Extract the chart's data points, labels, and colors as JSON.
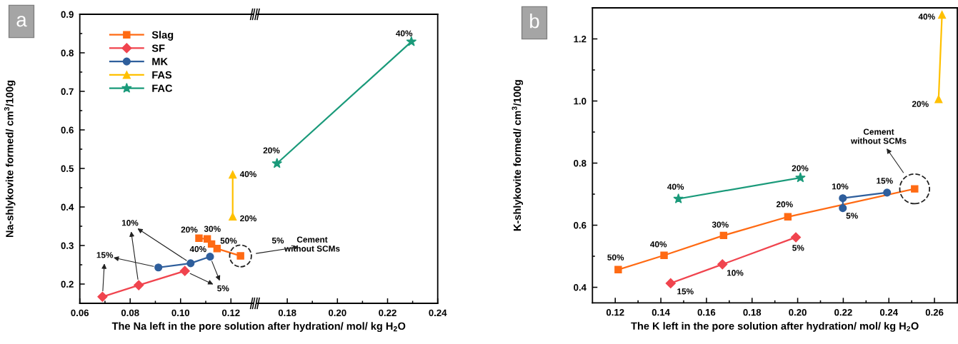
{
  "chart_data": [
    {
      "type": "line",
      "title": "a",
      "xlabel": "The Na left in the pore solution after hydration/ mol/ kg H$_{2}$O",
      "ylabel": "Na-shlykovite formed/ cm$^{3}$/100g",
      "xlim": [
        0.06,
        0.129
      ],
      "xticks": [
        0.06,
        {
          "value": 0.07,
          "label": null
        },
        0.08,
        {
          "value": 0.09,
          "label": null
        },
        {
          "value": 0.1,
          "label": "0.10"
        },
        {
          "value": 0.11,
          "label": null
        },
        0.12
      ],
      "ylim": [
        0.15,
        0.9
      ],
      "yticks": [
        0.2,
        {
          "value": 0.25,
          "label": null
        },
        0.3,
        {
          "value": 0.35,
          "label": null
        },
        0.4,
        {
          "value": 0.45,
          "label": null
        },
        0.5,
        {
          "value": 0.55,
          "label": null
        },
        0.6,
        {
          "value": 0.65,
          "label": null
        },
        0.7,
        {
          "value": 0.75,
          "label": null
        },
        0.8,
        {
          "value": 0.85,
          "label": null
        },
        0.9
      ],
      "legend": "top left",
      "series": [
        {
          "name": "Slag",
          "color": "#ff6a13",
          "marker": "square",
          "x": [
            0.1073,
            0.1106,
            0.1123,
            0.1145,
            0.1238
          ],
          "values": [
            0.319,
            0.317,
            0.304,
            0.292,
            0.273
          ]
        },
        {
          "name": "SF",
          "color": "#f0444e",
          "marker": "diamond",
          "x": [
            0.069,
            0.0834,
            0.1017
          ],
          "values": [
            0.167,
            0.197,
            0.234
          ]
        },
        {
          "name": "MK",
          "color": "#2e5e9c",
          "marker": "circle",
          "x": [
            0.0912,
            0.104,
            0.1117
          ],
          "values": [
            0.243,
            0.254,
            0.271
          ]
        },
        {
          "name": "FAS",
          "color": "#ffc000",
          "marker": "triangle",
          "x": [
            0.1207,
            0.1207
          ],
          "values": [
            0.375,
            0.484
          ]
        }
      ],
      "annotations": [
        {
          "text": "20%",
          "x": 0.1073,
          "y": 0.319
        },
        {
          "text": "30%",
          "x": 0.1106,
          "y": 0.317
        },
        {
          "text": "40%",
          "x": 0.1123,
          "y": 0.304
        },
        {
          "text": "50%",
          "x": 0.1145,
          "y": 0.292
        },
        "5%",
        "Cement\nwithout SCMs",
        {
          "text": "10%",
          "x": 0.0834,
          "y": 0.197
        },
        {
          "text": "15%",
          "x": 0.069,
          "y": 0.167
        },
        {
          "text": "5%",
          "x": 0.1017,
          "y": 0.234
        },
        {
          "text": "40%",
          "x": 0.1207,
          "y": 0.484
        },
        {
          "text": "20%",
          "x": 0.1207,
          "y": 0.375
        }
      ]
    },
    {
      "type": "line",
      "tick_labels": "x",
      "xlim": [
        0.168,
        0.24
      ],
      "xticks": [
        0.18,
        {
          "value": 0.19,
          "label": null
        },
        {
          "value": 0.2,
          "label": "0.20"
        },
        {
          "value": 0.21,
          "label": null
        },
        0.22,
        {
          "value": 0.23,
          "label": null
        },
        0.24
      ],
      "ylim": [
        0.15,
        0.9
      ],
      "series": [
        {
          "name": "FAC",
          "color": "#1a9a7a",
          "marker": "star",
          "x": [
            0.1759,
            0.2295
          ],
          "values": [
            0.513,
            0.829
          ]
        }
      ],
      "annotations": [
        {
          "text": "20%",
          "x": 0.1759,
          "y": 0.513
        },
        {
          "text": "40%",
          "x": 0.2295,
          "y": 0.829
        }
      ]
    },
    {
      "type": "line",
      "title": "b",
      "xlabel": "The K left in the pore solution after hydration/ mol/ kg H$_{2}$O",
      "ylabel": "K-shlykovite formed/ cm$^{3}$/100g",
      "xlim": [
        0.11,
        0.27
      ],
      "xticks": [
        0.12,
        {
          "value": 0.13,
          "label": null
        },
        0.14,
        {
          "value": 0.15,
          "label": null
        },
        0.16,
        {
          "value": 0.17,
          "label": null
        },
        0.18,
        {
          "value": 0.19,
          "label": null
        },
        {
          "value": 0.2,
          "label": "0.20"
        },
        {
          "value": 0.21,
          "label": null
        },
        0.22,
        {
          "value": 0.23,
          "label": null
        },
        0.24,
        {
          "value": 0.25,
          "label": null
        },
        0.26
      ],
      "ylim": [
        0.35,
        1.3
      ],
      "yticks": [
        0.4,
        {
          "value": 0.5,
          "label": null
        },
        0.6,
        {
          "value": 0.7,
          "label": null
        },
        0.8,
        {
          "value": 0.9,
          "label": null
        },
        {
          "value": 1.0,
          "label": "1.0"
        },
        {
          "value": 1.1,
          "label": null
        },
        1.2
      ],
      "series": [
        {
          "color": "#ff6a13",
          "marker": "square",
          "x": [
            0.1213,
            0.1414,
            0.1675,
            0.1957,
            0.2513
          ],
          "values": [
            0.457,
            0.503,
            0.567,
            0.627,
            0.717
          ]
        },
        {
          "color": "#f0444e",
          "marker": "diamond",
          "x": [
            0.1443,
            0.167,
            0.1992
          ],
          "values": [
            0.413,
            0.474,
            0.561
          ]
        },
        {
          "color": "#2e5e9c",
          "marker": "circle",
          "x": [
            0.2198,
            0.2198,
            0.2392
          ],
          "values": [
            0.655,
            0.687,
            0.705
          ]
        },
        {
          "color": "#ffc000",
          "marker": "triangle",
          "x": [
            0.2618,
            0.2633
          ],
          "values": [
            1.006,
            1.278
          ]
        },
        {
          "color": "#1a9a7a",
          "marker": "star",
          "x": [
            0.1477,
            0.2012
          ],
          "values": [
            0.685,
            0.753
          ]
        }
      ],
      "annotations": [
        {
          "text": "50%",
          "x": 0.1213,
          "y": 0.457
        },
        {
          "text": "40%",
          "x": 0.1414,
          "y": 0.503
        },
        {
          "text": "30%",
          "x": 0.1675,
          "y": 0.567
        },
        {
          "text": "20%",
          "x": 0.1957,
          "y": 0.627
        },
        "Cement\nwithout SCMs",
        {
          "text": "15%",
          "x": 0.1443,
          "y": 0.413
        },
        {
          "text": "10%",
          "x": 0.167,
          "y": 0.474
        },
        {
          "text": "5%",
          "x": 0.1992,
          "y": 0.561
        },
        {
          "text": "5%",
          "x": 0.2198,
          "y": 0.655
        },
        {
          "text": "10%",
          "x": 0.2198,
          "y": 0.687
        },
        {
          "text": "15%",
          "x": 0.2392,
          "y": 0.705
        },
        {
          "text": "20%",
          "x": 0.2618,
          "y": 1.006
        },
        {
          "text": "40%",
          "x": 0.2633,
          "y": 1.278
        },
        {
          "text": "40%",
          "x": 0.1477,
          "y": 0.685
        },
        {
          "text": "20%",
          "x": 0.2012,
          "y": 0.753
        }
      ]
    }
  ]
}
